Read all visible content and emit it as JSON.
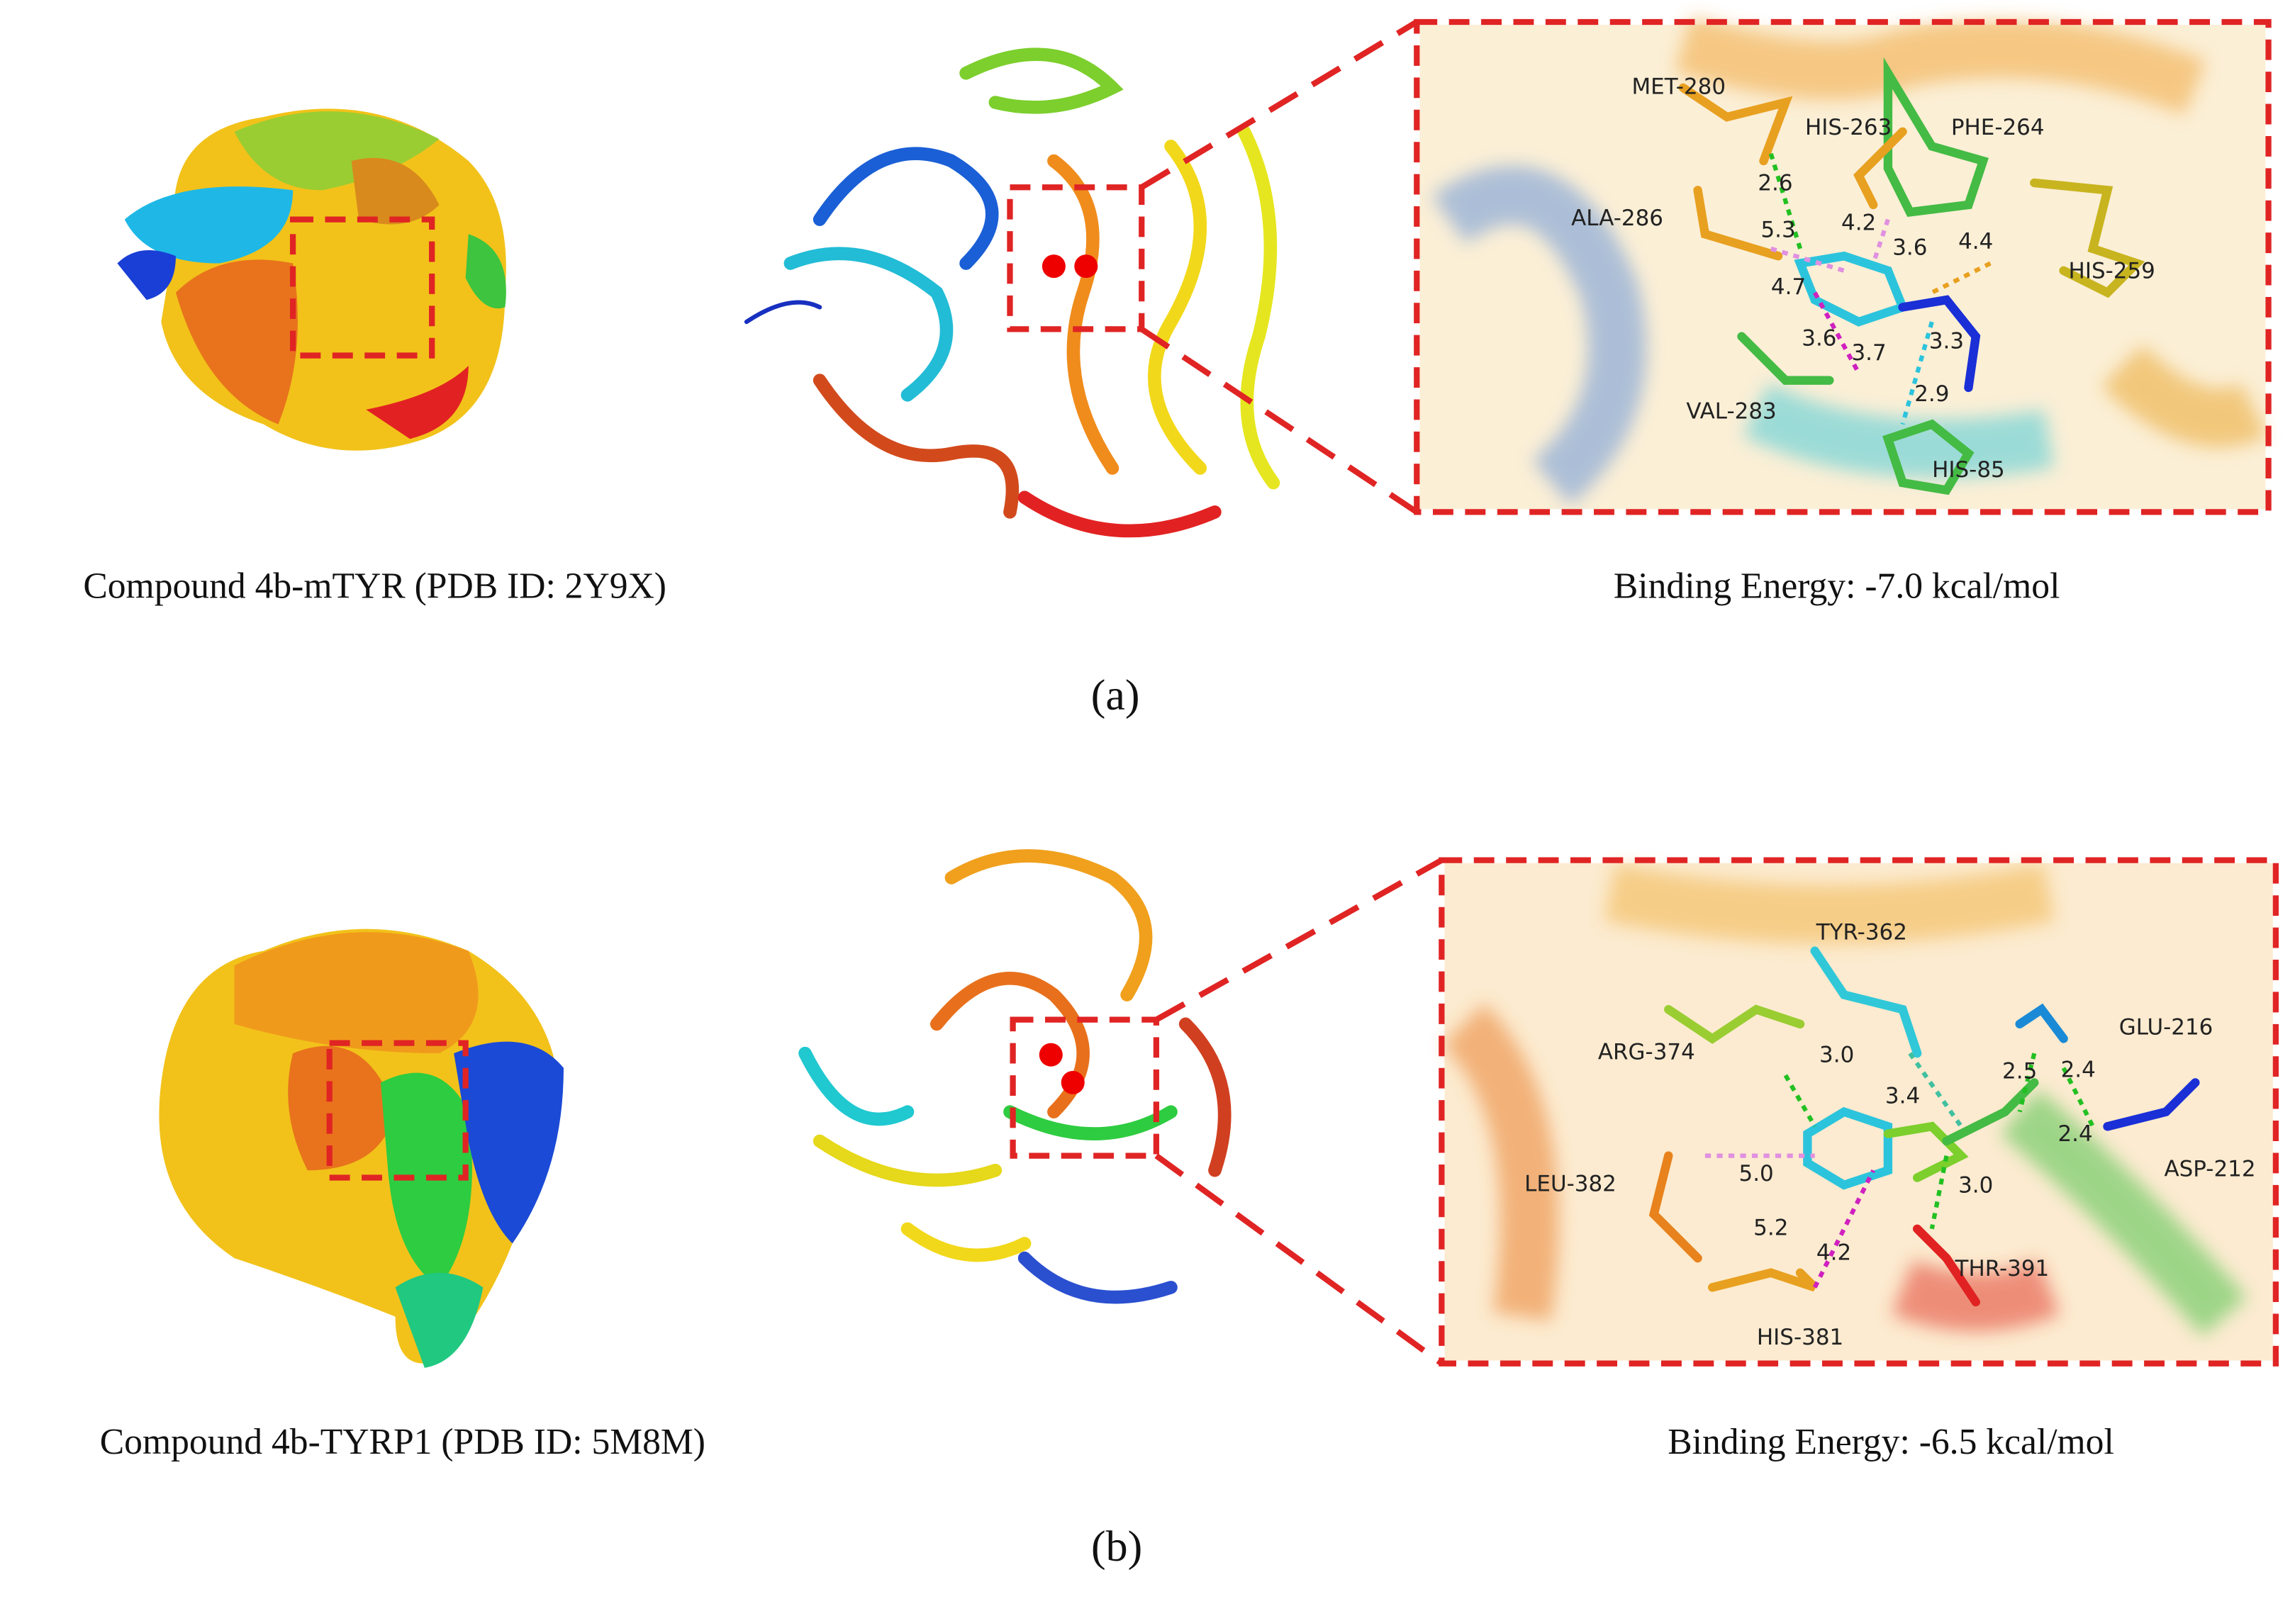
{
  "panels": [
    {
      "label": "(a)",
      "caption": "Compound 4b-mTYR  (PDB ID: 2Y9X)",
      "binding_energy": "Binding Energy: -7.0 kcal/mol",
      "residues": [
        "MET-280",
        "HIS-263",
        "PHE-264",
        "ALA-286",
        "HIS-259",
        "VAL-283",
        "HIS-85"
      ],
      "distances": [
        "2.6",
        "5.3",
        "4.2",
        "3.6",
        "4.4",
        "4.7",
        "3.6",
        "3.7",
        "3.3",
        "2.9"
      ]
    },
    {
      "label": "(b)",
      "caption": "Compound 4b-TYRP1 (PDB ID: 5M8M)",
      "binding_energy": "Binding Energy: -6.5 kcal/mol",
      "residues": [
        "TYR-362",
        "ARG-374",
        "GLU-216",
        "LEU-382",
        "ASP-212",
        "THR-391",
        "HIS-381"
      ],
      "distances": [
        "3.0",
        "3.4",
        "2.5",
        "2.4",
        "2.4",
        "5.0",
        "3.0",
        "5.2",
        "4.2"
      ]
    }
  ]
}
